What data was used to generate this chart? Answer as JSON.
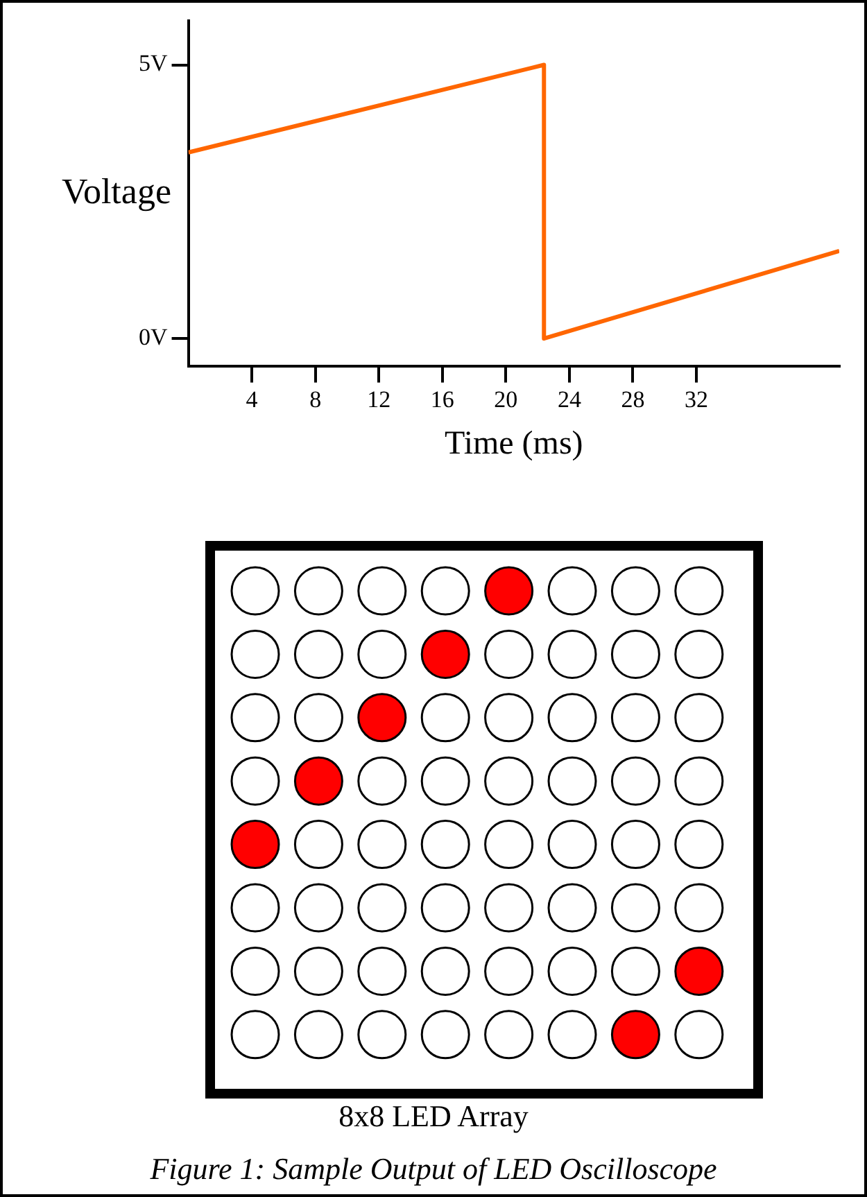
{
  "chart_data": {
    "type": "line",
    "xlabel": "Time (ms)",
    "ylabel": "Voltage",
    "x": [
      0,
      22.4,
      22.4,
      41
    ],
    "series": [
      {
        "color": "#ff6600",
        "values": [
          3.4,
          5,
          0,
          1.6
        ]
      }
    ],
    "xlim": [
      0,
      41
    ],
    "ylim": [
      -0.5,
      5.8
    ],
    "xticks": [
      4,
      8,
      12,
      16,
      20,
      24,
      28,
      32
    ],
    "yticks": [
      {
        "value": 5,
        "label": "5V"
      },
      {
        "value": 0,
        "label": "0V"
      }
    ],
    "grid": false,
    "legend": false,
    "marker": "none",
    "line_style": "solid",
    "annotations": [
      "8x8 LED Array",
      "Figure 1: Sample Output of LED Oscilloscope"
    ]
  }
}
